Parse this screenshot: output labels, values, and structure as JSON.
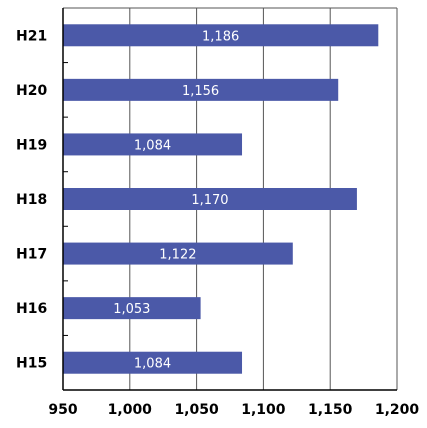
{
  "chart_data": {
    "type": "bar",
    "orientation": "horizontal",
    "categories": [
      "H21",
      "H20",
      "H19",
      "H18",
      "H17",
      "H16",
      "H15"
    ],
    "values": [
      1186,
      1156,
      1084,
      1170,
      1122,
      1053,
      1084
    ],
    "value_labels": [
      "1,186",
      "1,156",
      "1,084",
      "1,170",
      "1,122",
      "1,053",
      "1,084"
    ],
    "xlim": [
      950,
      1200
    ],
    "xticks": [
      950,
      1000,
      1050,
      1100,
      1150,
      1200
    ],
    "xtick_labels": [
      "950",
      "1,000",
      "1,050",
      "1,100",
      "1,150",
      "1,200"
    ],
    "grid": "vertical",
    "title": "",
    "xlabel": "",
    "ylabel": "",
    "colors": {
      "bar": "#4B59A8",
      "grid": "#555555",
      "axis": "#000000"
    }
  }
}
